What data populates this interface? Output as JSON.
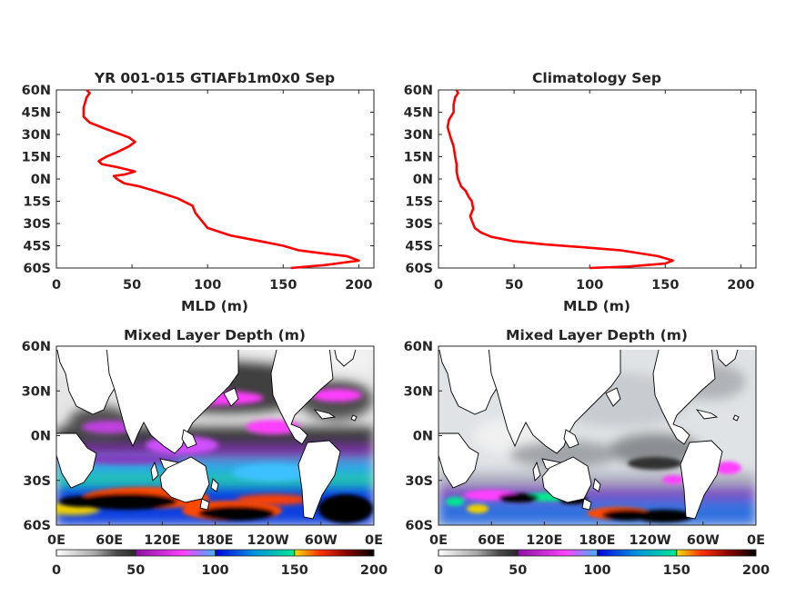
{
  "colors": {
    "profile_line": "#ff0000",
    "land": "#ffffff",
    "coast": "#000000",
    "axis": "#262626"
  },
  "chart_data": [
    {
      "type": "line",
      "title": "YR 001-015 GTIAFb1m0x0 Sep",
      "xlabel": "MLD (m)",
      "xlim": [
        0,
        210
      ],
      "ylim": [
        -60,
        60
      ],
      "xticks": [
        "0",
        "50",
        "100",
        "150",
        "200"
      ],
      "yticks": [
        "60N",
        "45N",
        "30N",
        "15N",
        "0N",
        "15S",
        "30S",
        "45S",
        "60S"
      ],
      "series": [
        {
          "x": [
            155,
            178,
            200,
            192,
            175,
            160,
            150,
            140,
            125,
            115,
            100,
            92,
            90,
            80,
            65,
            55,
            45,
            40,
            38,
            45,
            52,
            40,
            30,
            28,
            33,
            40,
            48,
            52,
            48,
            40,
            32,
            22,
            18,
            18,
            20,
            22,
            20
          ],
          "y": [
            -60,
            -58,
            -55,
            -52,
            -50,
            -48,
            -45,
            -43,
            -40,
            -38,
            -33,
            -23,
            -18,
            -13,
            -8,
            -5,
            -3,
            0,
            2,
            3,
            5,
            8,
            10,
            12,
            15,
            18,
            22,
            25,
            28,
            31,
            34,
            38,
            42,
            48,
            55,
            58,
            60
          ]
        }
      ]
    },
    {
      "type": "line",
      "title": "Climatology Sep",
      "xlabel": "MLD (m)",
      "xlim": [
        0,
        210
      ],
      "ylim": [
        -60,
        60
      ],
      "xticks": [
        "0",
        "50",
        "100",
        "150",
        "200"
      ],
      "yticks": [
        "60N",
        "45N",
        "30N",
        "15N",
        "0N",
        "15S",
        "30S",
        "45S",
        "60S"
      ],
      "series": [
        {
          "x": [
            100,
            125,
            150,
            155,
            145,
            120,
            95,
            70,
            50,
            35,
            28,
            24,
            22,
            21,
            23,
            22,
            20,
            18,
            15,
            13,
            12,
            12,
            11,
            10,
            8,
            6,
            7,
            10,
            10,
            11,
            13,
            12
          ],
          "y": [
            -60,
            -59,
            -57,
            -55,
            -52,
            -48,
            -46,
            -44,
            -42,
            -39,
            -36,
            -33,
            -28,
            -25,
            -20,
            -15,
            -12,
            -8,
            -5,
            0,
            5,
            10,
            15,
            22,
            28,
            35,
            40,
            45,
            50,
            55,
            58,
            60
          ]
        }
      ]
    },
    {
      "type": "heatmap",
      "title": "Mixed Layer Depth (m)",
      "xticks": [
        "0E",
        "60E",
        "120E",
        "180E",
        "120W",
        "60W",
        "0E"
      ],
      "yticks": [
        "60N",
        "30N",
        "0N",
        "30S",
        "60S"
      ],
      "colorbar_ticks": [
        "0",
        "50",
        "100",
        "150",
        "200"
      ],
      "colorbar_range": [
        0,
        200
      ]
    },
    {
      "type": "heatmap",
      "title": "Mixed Layer Depth (m)",
      "xticks": [
        "0E",
        "60E",
        "120E",
        "180E",
        "120W",
        "60W",
        "0E"
      ],
      "yticks": [
        "60N",
        "30N",
        "0N",
        "30S",
        "60S"
      ],
      "colorbar_ticks": [
        "0",
        "50",
        "100",
        "150",
        "200"
      ],
      "colorbar_range": [
        0,
        200
      ]
    }
  ]
}
